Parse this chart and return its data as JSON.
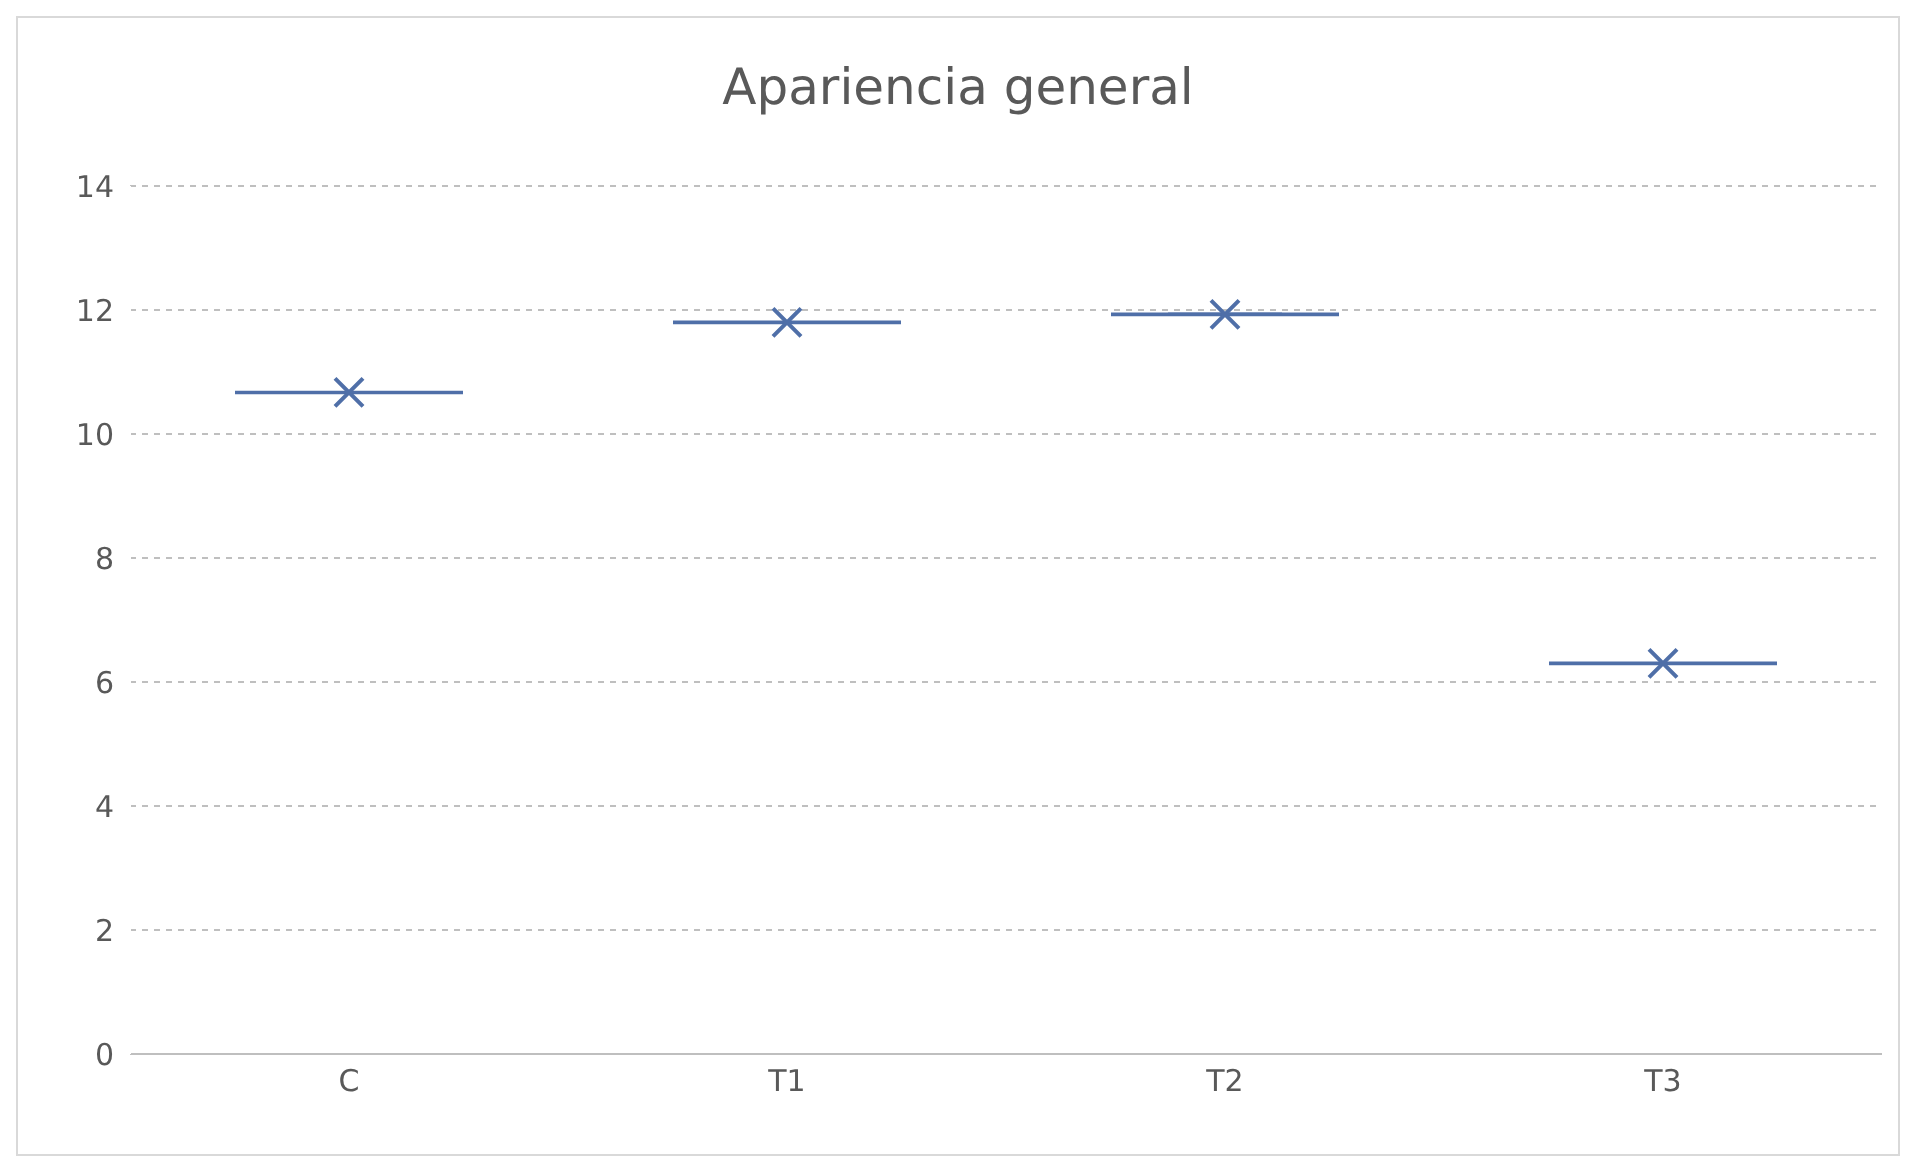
{
  "chart_data": {
    "type": "box",
    "title": "Apariencia general",
    "categories": [
      "C",
      "T1",
      "T2",
      "T3"
    ],
    "boxes": [
      {
        "low": 10.67,
        "q1": 10.67,
        "median": 10.67,
        "q3": 10.67,
        "high": 10.67,
        "mean": 10.67
      },
      {
        "low": 11.8,
        "q1": 11.8,
        "median": 11.8,
        "q3": 11.8,
        "high": 11.8,
        "mean": 11.8
      },
      {
        "low": 11.93,
        "q1": 11.93,
        "median": 11.93,
        "q3": 11.93,
        "high": 11.93,
        "mean": 11.93
      },
      {
        "low": 6.3,
        "q1": 6.3,
        "median": 6.3,
        "q3": 6.3,
        "high": 6.3,
        "mean": 6.3
      }
    ],
    "color": "#4f6fa8",
    "ylim": [
      0,
      14
    ],
    "yticks": [
      0,
      2,
      4,
      6,
      8,
      10,
      12,
      14
    ],
    "grid": "y"
  }
}
